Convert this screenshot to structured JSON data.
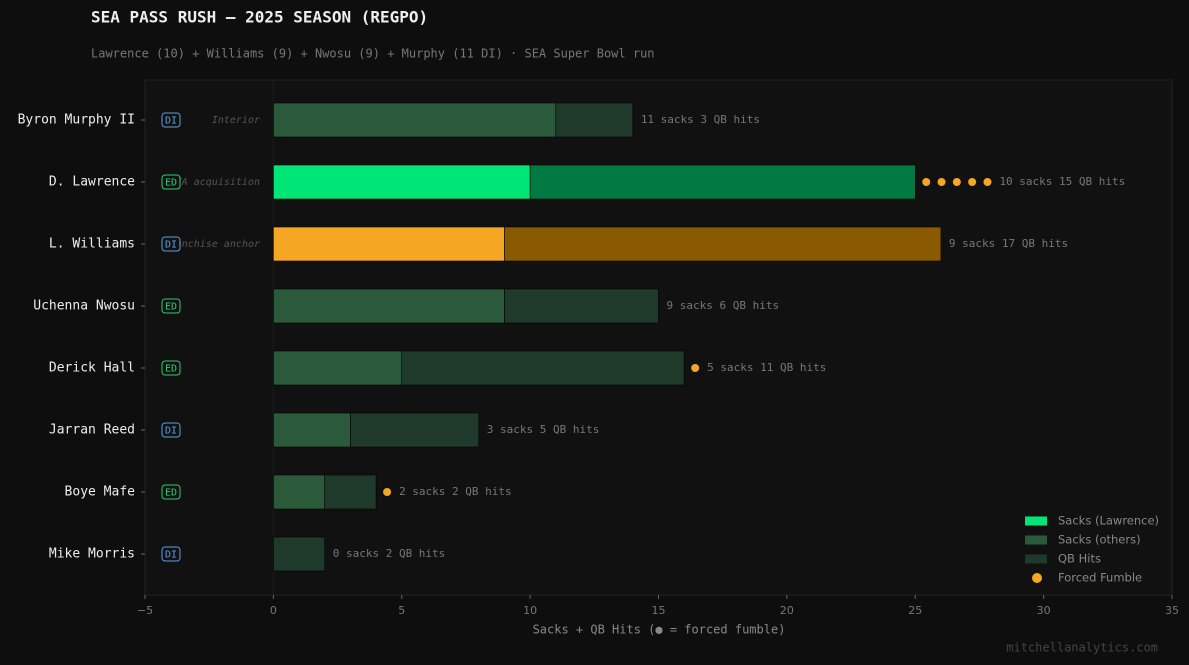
{
  "chart_data": {
    "type": "stacked-barh",
    "title": "SEA PASS RUSH — 2025 SEASON (REGPO)",
    "subtitle": "Lawrence (10) + Williams (9) + Nwosu (9) + Murphy (11 DI)  ·  SEA Super Bowl run",
    "x_label": "Sacks + QB Hits  (● = forced fumble)",
    "watermark": "mitchellanalytics.com",
    "categories": [
      "Byron Murphy II",
      "D. Lawrence",
      "L. Williams",
      "Uchenna Nwosu",
      "Derick Hall",
      "Jarran Reed",
      "Boye Mafe",
      "Mike Morris"
    ],
    "positions": [
      "DI",
      "ED",
      "DI",
      "ED",
      "ED",
      "DI",
      "ED",
      "DI"
    ],
    "position_colors": {
      "DI": "#5b9fe3",
      "ED": "#2ecc71"
    },
    "notes": [
      "Interior",
      "FA acquisition",
      "Franchise anchor",
      null,
      null,
      null,
      null,
      null
    ],
    "sacks": [
      11,
      10,
      9,
      9,
      5,
      3,
      2,
      0
    ],
    "qb_hits": [
      3,
      15,
      17,
      6,
      11,
      5,
      2,
      2
    ],
    "forced_fumbles": [
      0,
      5,
      0,
      0,
      1,
      0,
      1,
      0
    ],
    "value_labels": [
      "11 sacks  3 QB hits",
      "10 sacks  15 QB hits",
      "9 sacks  17 QB hits",
      "9 sacks  6 QB hits",
      "5 sacks  11 QB hits",
      "3 sacks  5 QB hits",
      "2 sacks  2 QB hits",
      "0 sacks  2 QB hits"
    ],
    "sack_colors": [
      "#2a5a3a",
      "#00e676",
      "#f5a623",
      "#2a5a3a",
      "#2a5a3a",
      "#2a5a3a",
      "#2a5a3a",
      "#2a5a3a"
    ],
    "hit_colors": [
      "#1f3a2b",
      "#007a40",
      "#8a5a00",
      "#1f3a2b",
      "#1f3a2b",
      "#1f3a2b",
      "#1f3a2b",
      "#1f3a2b"
    ],
    "fumble_color": "#f5a623",
    "legend": [
      {
        "name": "Sacks (Lawrence)",
        "color": "#00e676",
        "marker": "square"
      },
      {
        "name": "Sacks (others)",
        "color": "#2a5a3a",
        "marker": "square"
      },
      {
        "name": "QB Hits",
        "color": "#1f3a2b",
        "marker": "square"
      },
      {
        "name": "Forced Fumble",
        "color": "#f5a623",
        "marker": "circle"
      }
    ],
    "legend_position": "lower right",
    "xlim": [
      -5,
      35
    ],
    "xticks": [
      {
        "value": -5,
        "label": "−5"
      },
      0,
      5,
      10,
      15,
      20,
      25,
      30,
      35
    ]
  }
}
